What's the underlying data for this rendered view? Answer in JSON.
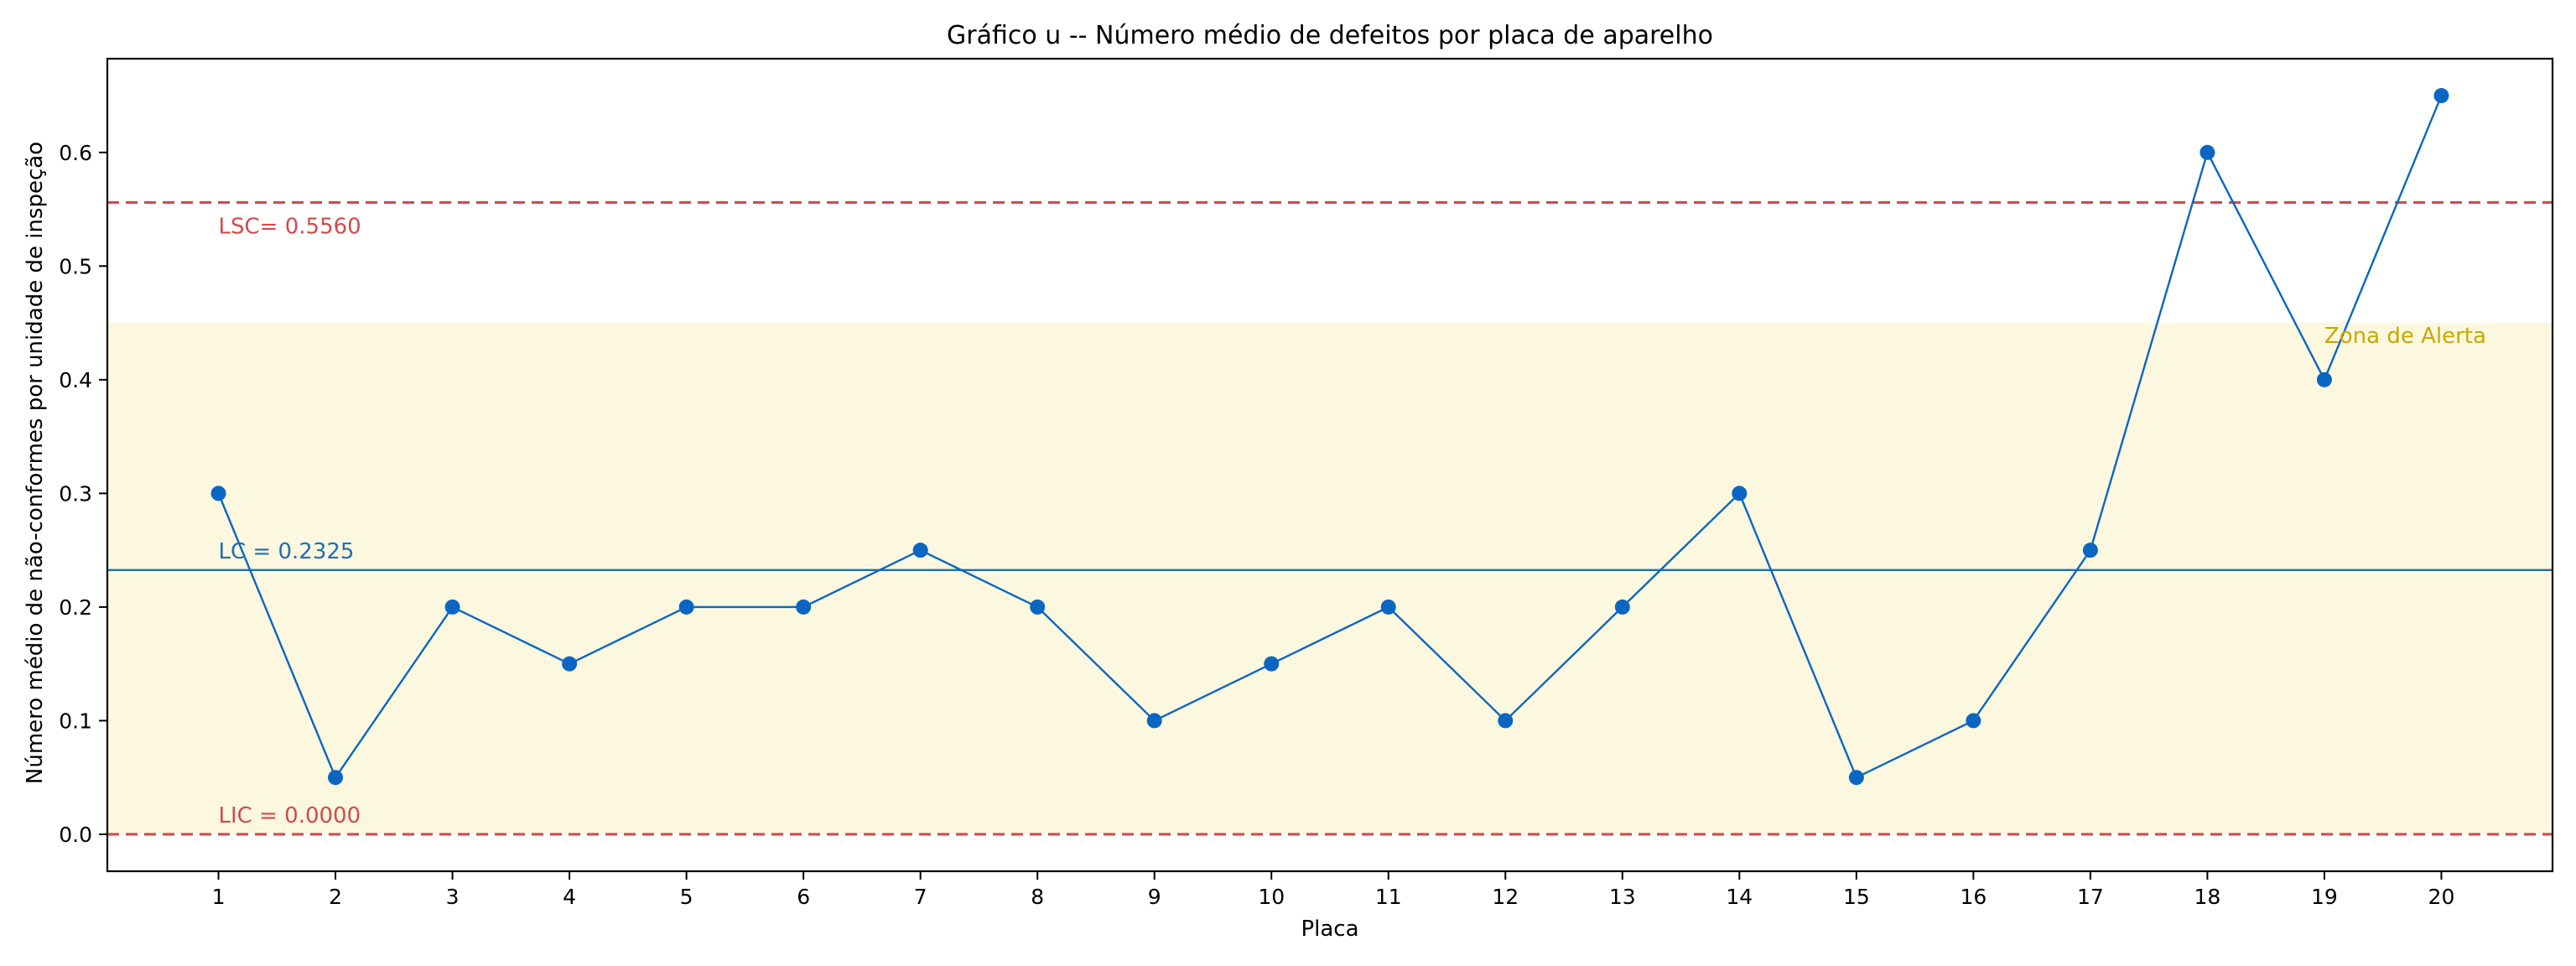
{
  "chart_data": {
    "type": "line",
    "title": "Gráfico u -- Número médio de defeitos por placa de aparelho",
    "xlabel": "Placa",
    "ylabel": "Número médio de não-conformes por unidade de inspeção",
    "x": [
      1,
      2,
      3,
      4,
      5,
      6,
      7,
      8,
      9,
      10,
      11,
      12,
      13,
      14,
      15,
      16,
      17,
      18,
      19,
      20
    ],
    "series": [
      {
        "values": [
          0.3,
          0.05,
          0.2,
          0.15,
          0.2,
          0.2,
          0.25,
          0.2,
          0.1,
          0.15,
          0.2,
          0.1,
          0.2,
          0.3,
          0.05,
          0.1,
          0.25,
          0.6,
          0.4,
          0.65
        ],
        "color": "#0a66c2"
      }
    ],
    "xlim": [
      0.05,
      20.95
    ],
    "ylim": [
      -0.0325,
      0.6825
    ],
    "yticks": [
      0.0,
      0.1,
      0.2,
      0.3,
      0.4,
      0.5,
      0.6
    ],
    "ytick_labels": [
      "0.0",
      "0.1",
      "0.2",
      "0.3",
      "0.4",
      "0.5",
      "0.6"
    ],
    "xticks": [
      1,
      2,
      3,
      4,
      5,
      6,
      7,
      8,
      9,
      10,
      11,
      12,
      13,
      14,
      15,
      16,
      17,
      18,
      19,
      20
    ],
    "xtick_labels": [
      "1",
      "2",
      "3",
      "4",
      "5",
      "6",
      "7",
      "8",
      "9",
      "10",
      "11",
      "12",
      "13",
      "14",
      "15",
      "16",
      "17",
      "18",
      "19",
      "20"
    ],
    "grid": false,
    "control_lines": [
      {
        "id": "ucl",
        "value": 0.556,
        "label": "LSC= 0.5560",
        "color": "#d14b4b",
        "style": "dashed"
      },
      {
        "id": "cl",
        "value": 0.2325,
        "label": "LC = 0.2325",
        "color": "#1f6fb0",
        "style": "solid"
      },
      {
        "id": "lcl",
        "value": 0.0,
        "label": "LIC = 0.0000",
        "color": "#d14b4b",
        "style": "dashed"
      }
    ],
    "alert_zone": {
      "from": 0.0,
      "to": 0.45,
      "label": "Zona de Alerta",
      "fill": "#fcf7df",
      "label_color": "#c9a800",
      "label_x": 19
    }
  }
}
